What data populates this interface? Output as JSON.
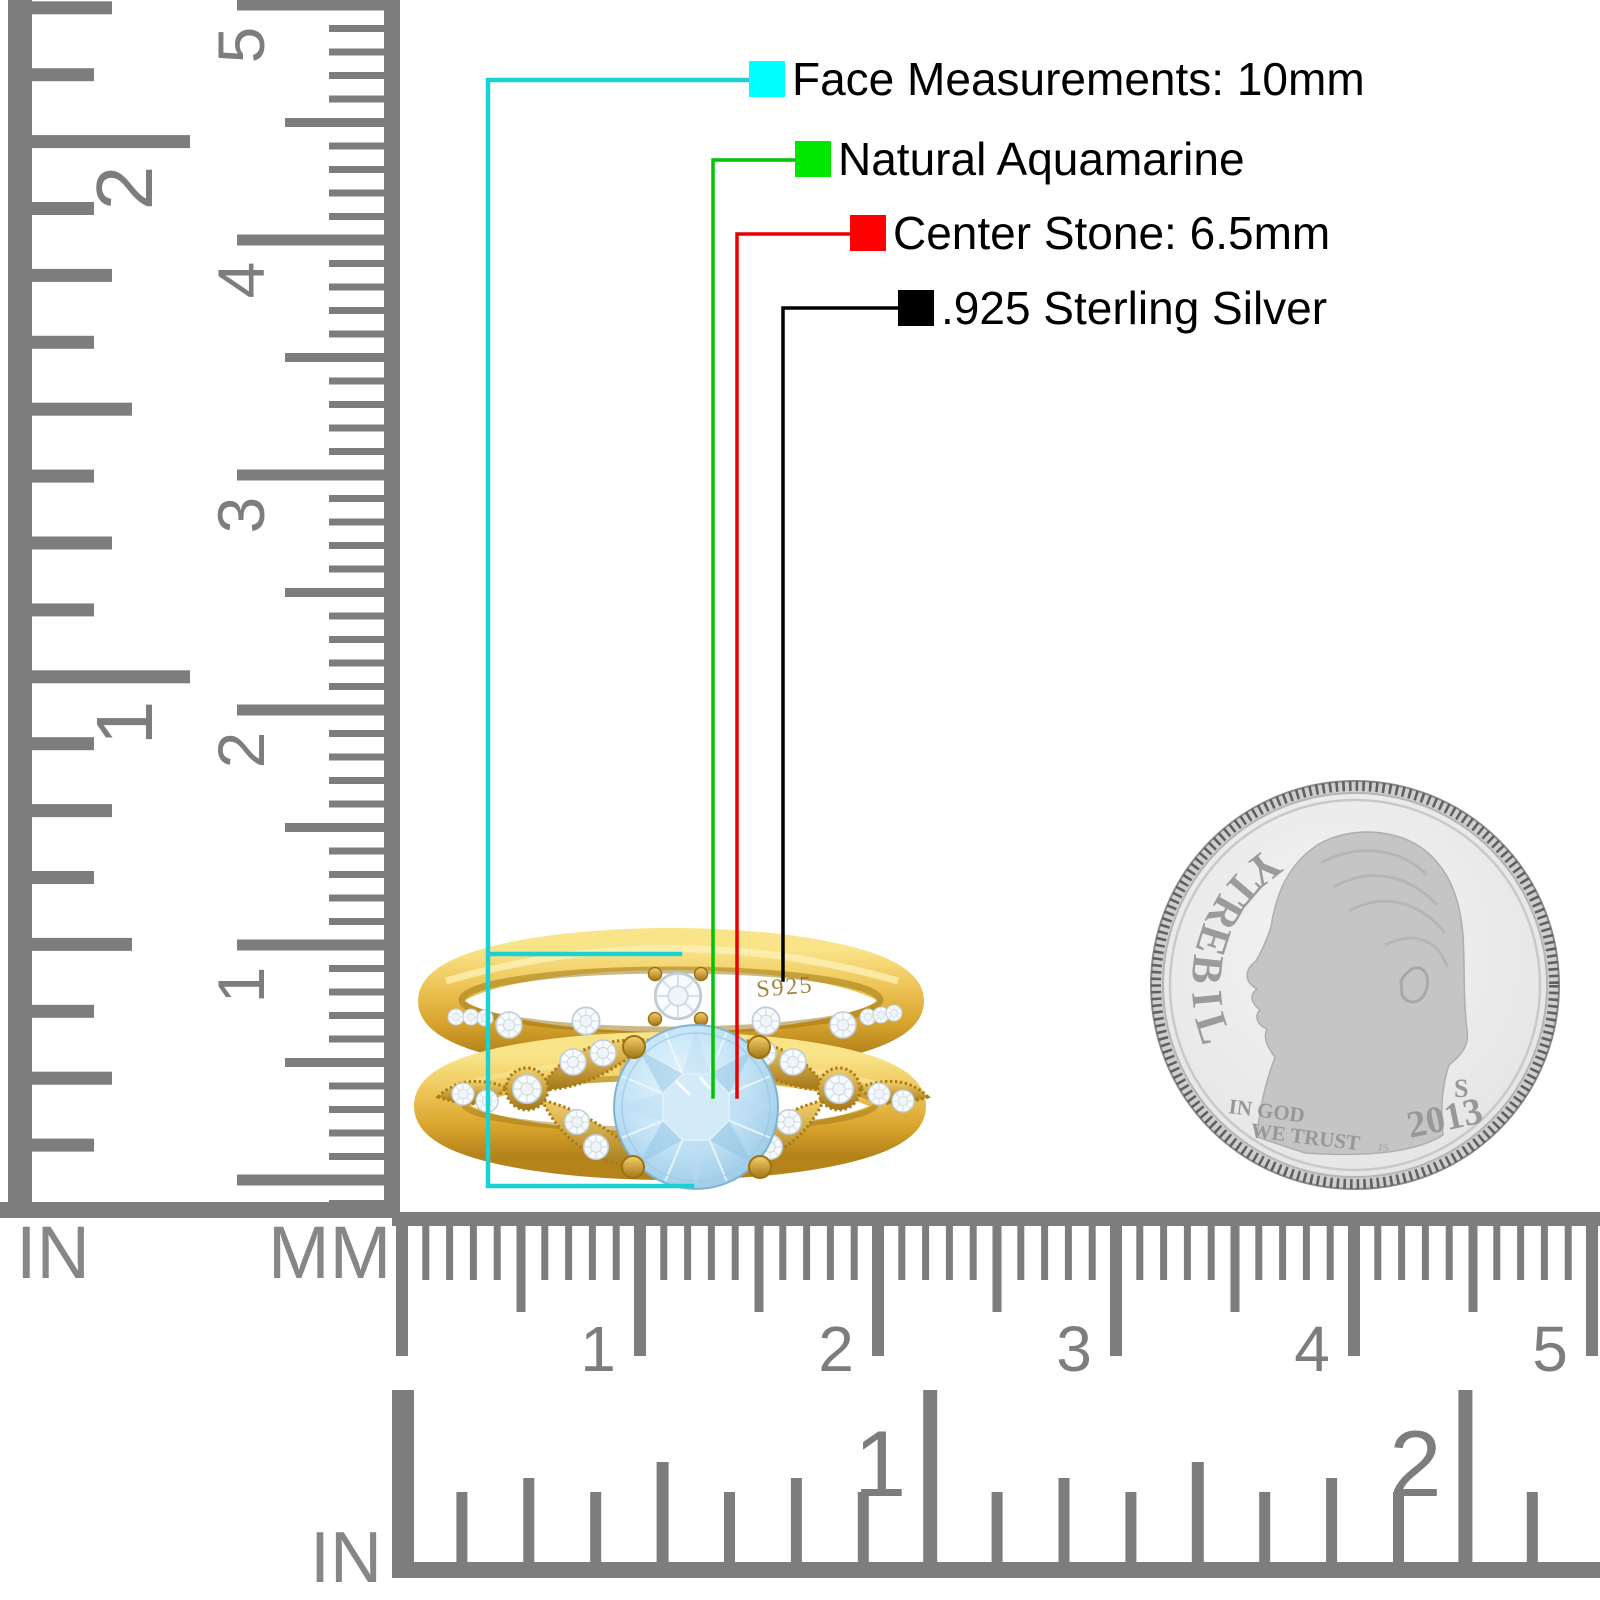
{
  "background": "#ffffff",
  "callouts": [
    {
      "label": "Face Measurements: 10mm",
      "color": "#00ffff",
      "line_color": "#1bd2d2"
    },
    {
      "label": "Natural Aquamarine",
      "color": "#00e800",
      "line_color": "#00c400"
    },
    {
      "label": "Center Stone: 6.5mm",
      "color": "#ff0000",
      "line_color": "#e80000"
    },
    {
      "label": ".925 Sterling Silver",
      "color": "#000000",
      "line_color": "#000000"
    }
  ],
  "rulers": {
    "color": "#7d7d7d",
    "left_inch": {
      "unit_label": "IN",
      "numbers": [
        "2",
        "1"
      ]
    },
    "left_mm": {
      "unit_label": "MM",
      "numbers": [
        "5",
        "4",
        "3",
        "2",
        "1"
      ]
    },
    "bottom_mm": {
      "numbers": [
        "1",
        "2",
        "3",
        "4",
        "5"
      ]
    },
    "bottom_inch": {
      "unit_label": "IN",
      "numbers": [
        "1",
        "2"
      ]
    }
  },
  "ring": {
    "hallmark": "S925",
    "band_color": "#e2b23a",
    "stone_color": "#aed6ef",
    "accent_stone_color": "#f7fafc"
  },
  "coin": {
    "motto_liberty": "LIBERTY",
    "motto_line1": "IN GOD",
    "motto_line2": "WE TRUST",
    "year": "2013",
    "mint_mark": "S",
    "designer_initials": "JS",
    "metal_color": "#d9d9d9"
  }
}
